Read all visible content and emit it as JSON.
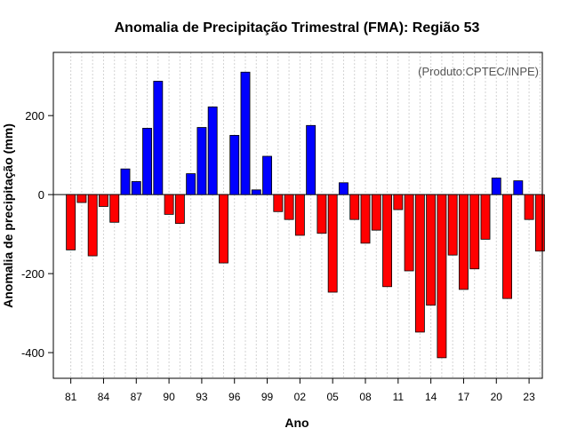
{
  "chart_data": {
    "type": "bar",
    "title": "Anomalia de Precipitação Trimestral (FMA): Região 53",
    "xlabel": "Ano",
    "ylabel": "Anomalia de precipitação (mm)",
    "credit": "(Produto:CPTEC/INPE)",
    "ylim": [
      -465,
      360
    ],
    "yticks": [
      -400,
      -200,
      0,
      200
    ],
    "categories": [
      "81",
      "82",
      "83",
      "84",
      "85",
      "86",
      "87",
      "88",
      "89",
      "90",
      "91",
      "92",
      "93",
      "94",
      "95",
      "96",
      "97",
      "98",
      "99",
      "00",
      "01",
      "02",
      "03",
      "04",
      "05",
      "06",
      "07",
      "08",
      "09",
      "10",
      "11",
      "12",
      "13",
      "14",
      "15",
      "16",
      "17",
      "18",
      "19",
      "20",
      "21",
      "22",
      "23",
      "24"
    ],
    "xtick_labels": [
      "81",
      "84",
      "87",
      "90",
      "93",
      "96",
      "99",
      "02",
      "05",
      "08",
      "11",
      "14",
      "17",
      "20",
      "23"
    ],
    "values": [
      -140,
      -20,
      -155,
      -30,
      -70,
      65,
      33,
      168,
      287,
      -50,
      -73,
      53,
      170,
      222,
      -173,
      150,
      310,
      12,
      97,
      -43,
      -63,
      -103,
      175,
      -98,
      -247,
      30,
      -63,
      -123,
      -90,
      -233,
      -38,
      -193,
      -348,
      -280,
      -413,
      -153,
      -240,
      -188,
      -113,
      42,
      -263,
      35,
      -63,
      -143
    ],
    "colors": {
      "positive": "#0000ff",
      "negative": "#ff0000"
    }
  }
}
